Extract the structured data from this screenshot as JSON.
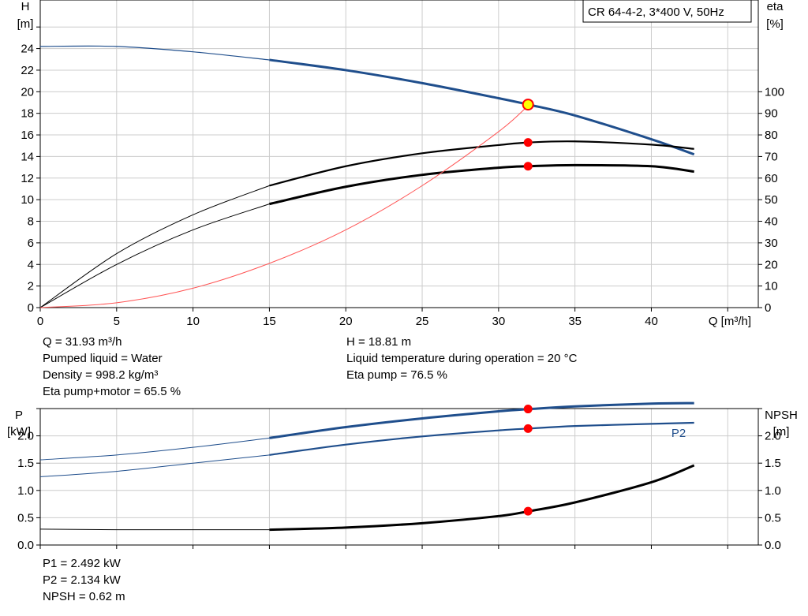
{
  "pump_label": "CR 64-4-2, 3*400 V, 50Hz",
  "colors": {
    "head": "#1f4e8c",
    "eta": "#000000",
    "system": "#ff5555",
    "duty_point": "#ff0000",
    "duty_point_head": "#ffff00",
    "grid": "#cccccc"
  },
  "chart_data": [
    {
      "type": "line",
      "title": "",
      "xlabel": "Q [m³/h]",
      "ylabel": "H\n[m]",
      "y2label": "eta\n[%]",
      "xlim": [
        0,
        47
      ],
      "xticks": [
        0,
        5,
        10,
        15,
        20,
        25,
        30,
        35,
        40
      ],
      "ylim": [
        0,
        28.5
      ],
      "yticks": [
        0,
        2,
        4,
        6,
        8,
        10,
        12,
        14,
        16,
        18,
        20,
        22,
        24
      ],
      "y2lim": [
        0,
        142.5
      ],
      "y2ticks": [
        0,
        10,
        20,
        30,
        40,
        50,
        60,
        70,
        80,
        90,
        100
      ],
      "grid": true,
      "operating_range": [
        15,
        42.8
      ],
      "series": [
        {
          "name": "H",
          "axis": "left",
          "color": "#1f4e8c",
          "x": [
            0,
            5,
            10,
            15,
            20,
            25,
            30,
            32,
            35,
            40,
            42.8
          ],
          "y": [
            24.2,
            24.2,
            23.7,
            22.95,
            22.0,
            20.8,
            19.4,
            18.8,
            17.8,
            15.6,
            14.2
          ]
        },
        {
          "name": "Eta pump",
          "axis": "right",
          "color": "#000000",
          "x": [
            0,
            5,
            10,
            15,
            20,
            25,
            30,
            32,
            35,
            40,
            42.8
          ],
          "y": [
            0,
            25,
            43,
            56.5,
            65.5,
            71.5,
            75.3,
            76.5,
            77,
            75.5,
            73.5
          ]
        },
        {
          "name": "Eta pump+motor",
          "axis": "right",
          "color": "#000000",
          "x": [
            0,
            5,
            10,
            15,
            20,
            25,
            30,
            32,
            35,
            40,
            42.8
          ],
          "y": [
            0,
            20,
            36,
            48,
            56,
            61.5,
            64.8,
            65.5,
            66,
            65.5,
            63
          ]
        },
        {
          "name": "System",
          "axis": "left",
          "color": "#ff5555",
          "x": [
            0,
            5,
            10,
            15,
            20,
            25,
            30,
            32
          ],
          "y": [
            0,
            0.45,
            1.8,
            4.1,
            7.2,
            11.3,
            16.3,
            18.81
          ]
        }
      ],
      "duty_points": [
        {
          "series": "H",
          "x": 31.93,
          "y": 18.81
        },
        {
          "series": "Eta pump",
          "x": 31.93,
          "y": 76.5
        },
        {
          "series": "Eta pump+motor",
          "x": 31.93,
          "y": 65.5
        }
      ]
    },
    {
      "type": "line",
      "title": "",
      "xlabel": "",
      "ylabel": "P\n[kW]",
      "y2label": "NPSH\n[m]",
      "xlim": [
        0,
        47
      ],
      "ylim": [
        0,
        2.5
      ],
      "yticks": [
        0.0,
        0.5,
        1.0,
        1.5,
        2.0
      ],
      "y2lim": [
        0,
        2.5
      ],
      "y2ticks": [
        0.0,
        0.5,
        1.0,
        1.5,
        2.0
      ],
      "grid": true,
      "series": [
        {
          "name": "P1",
          "axis": "left",
          "color": "#1f4e8c",
          "x": [
            0,
            5,
            10,
            15,
            20,
            25,
            30,
            32,
            35,
            40,
            42.8
          ],
          "y": [
            1.56,
            1.65,
            1.79,
            1.96,
            2.16,
            2.32,
            2.45,
            2.49,
            2.54,
            2.59,
            2.6
          ]
        },
        {
          "name": "P2",
          "axis": "left",
          "color": "#1f4e8c",
          "x": [
            0,
            5,
            10,
            15,
            20,
            25,
            30,
            32,
            35,
            40,
            42.8
          ],
          "y": [
            1.25,
            1.35,
            1.5,
            1.65,
            1.84,
            1.99,
            2.1,
            2.134,
            2.18,
            2.22,
            2.24
          ]
        },
        {
          "name": "NPSH",
          "axis": "right",
          "color": "#000000",
          "x": [
            0,
            5,
            10,
            15,
            20,
            25,
            30,
            32,
            35,
            40,
            42.8
          ],
          "y": [
            0.29,
            0.28,
            0.28,
            0.28,
            0.32,
            0.4,
            0.53,
            0.62,
            0.78,
            1.15,
            1.46
          ]
        }
      ],
      "duty_points": [
        {
          "series": "P1",
          "x": 31.93,
          "y": 2.492
        },
        {
          "series": "P2",
          "x": 31.93,
          "y": 2.134
        },
        {
          "series": "NPSH",
          "x": 31.93,
          "y": 0.62
        }
      ]
    }
  ],
  "info_top_left": [
    "Q = 31.93 m³/h",
    "Pumped liquid = Water",
    "Density = 998.2 kg/m³",
    "Eta pump+motor = 65.5 %"
  ],
  "info_top_right": [
    "H = 18.81 m",
    "Liquid temperature during operation = 20 °C",
    "Eta pump = 76.5 %"
  ],
  "info_bottom": [
    "P1 = 2.492 kW",
    "P2 = 2.134 kW",
    "NPSH = 0.62 m"
  ]
}
